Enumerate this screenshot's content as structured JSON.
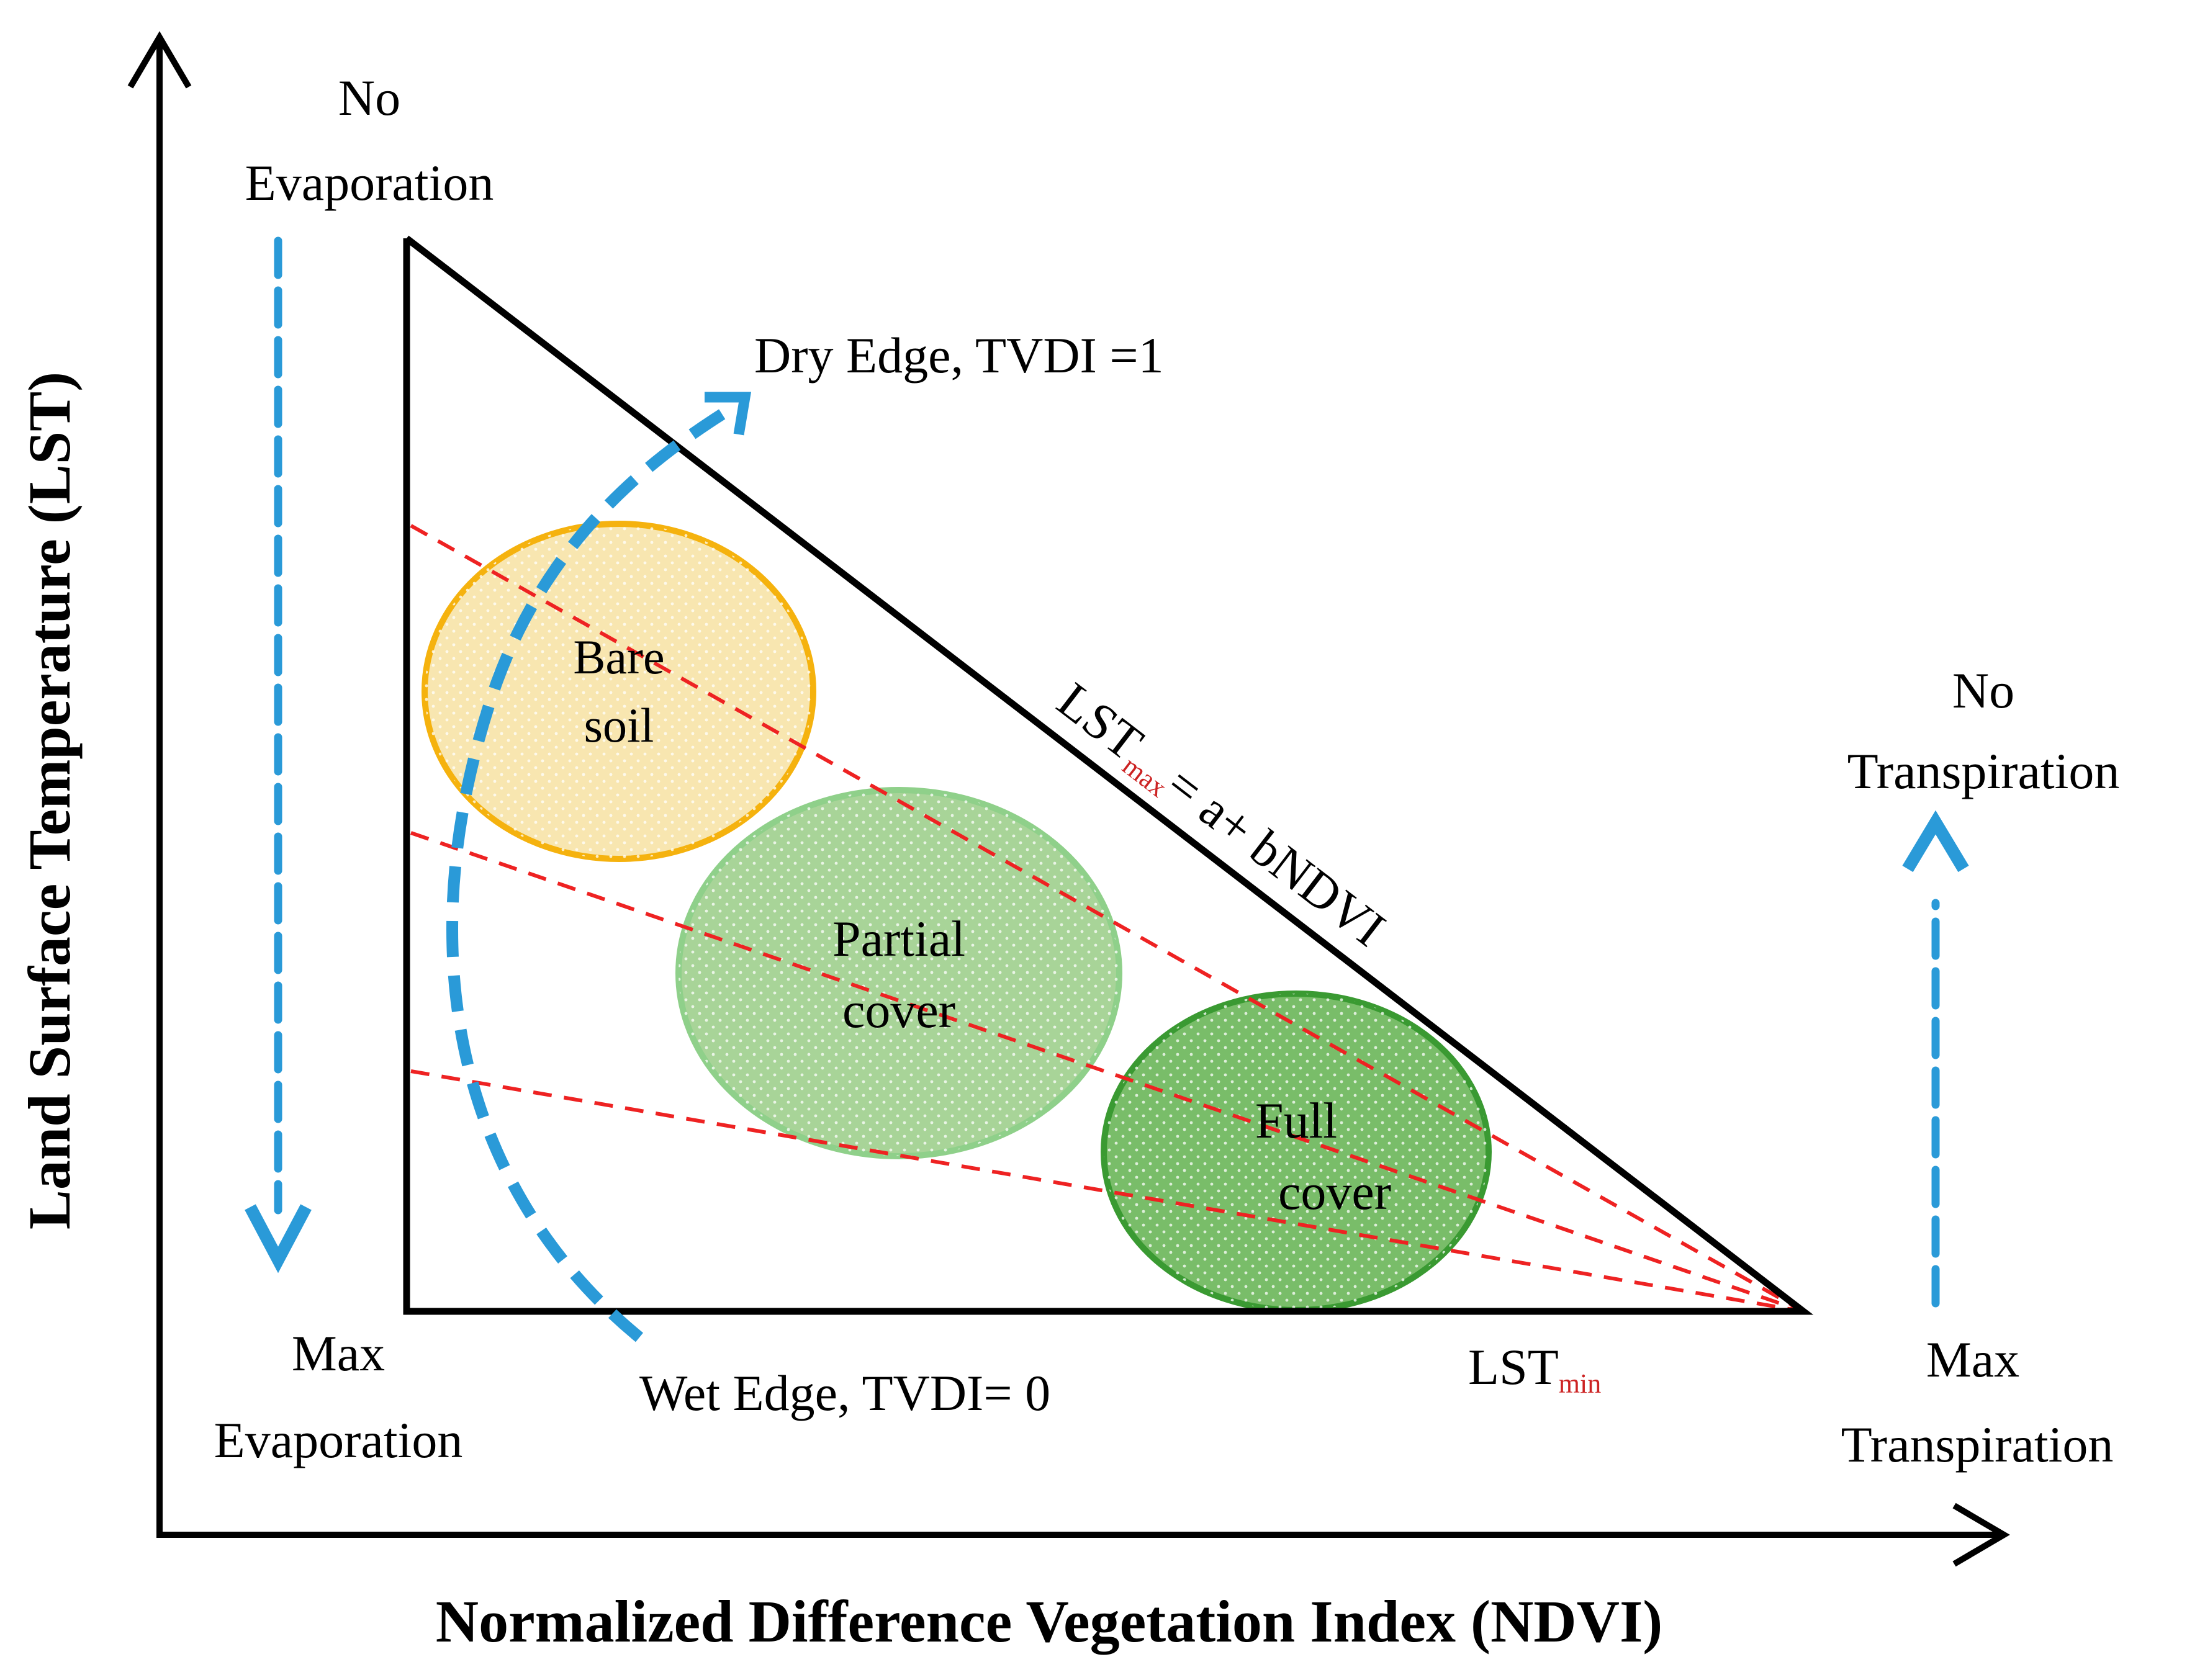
{
  "axes": {
    "x_title": "Normalized Difference Vegetation Index (NDVI)",
    "y_title": "Land Surface Temperature (LST)"
  },
  "corner_labels": {
    "top_left_line1": "No",
    "top_left_line2": "Evaporation",
    "bottom_left_line1": "Max",
    "bottom_left_line2": "Evaporation",
    "right_top_line1": "No",
    "right_top_line2": "Transpiration",
    "right_bottom_line1": "Max",
    "right_bottom_line2": "Transpiration"
  },
  "edges": {
    "dry_edge": "Dry Edge, TVDI =1",
    "wet_edge": "Wet Edge, TVDI= 0",
    "lst_max_main": "LST",
    "lst_max_sub": "max",
    "lst_max_rest": "= a+ bNDVI",
    "lst_min_main": "LST",
    "lst_min_sub": "min"
  },
  "zones": {
    "bare_line1": "Bare",
    "bare_line2": "soil",
    "partial_line1": "Partial",
    "partial_line2": "cover",
    "full_line1": "Full",
    "full_line2": "cover"
  },
  "colors": {
    "axis": "#000000",
    "triangle": "#000000",
    "isoline": "#ee2222",
    "arrow": "#2a9ad8",
    "bare_fill": "#f8e6b0",
    "bare_stroke": "#f5b20e",
    "partial_fill": "#a8d498",
    "partial_stroke": "#8fd08a",
    "full_fill": "#79bd69",
    "full_stroke": "#3a9a32"
  }
}
